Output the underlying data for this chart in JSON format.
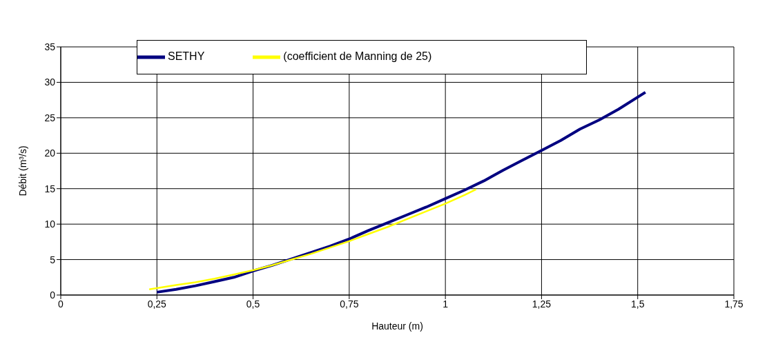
{
  "chart_data": {
    "type": "line",
    "xlabel": "Hauteur (m)",
    "ylabel": "Débit (m³/s)",
    "xlim": [
      0,
      1.75
    ],
    "xticks": [
      0,
      {
        "value": 0.25,
        "label": "0,25"
      },
      {
        "value": 0.5,
        "label": "0,5"
      },
      {
        "value": 0.75,
        "label": "0,75"
      },
      1,
      {
        "value": 1.25,
        "label": "1,25"
      },
      {
        "value": 1.5,
        "label": "1,5"
      },
      {
        "value": 1.75,
        "label": "1,75"
      }
    ],
    "ylim": [
      0,
      35
    ],
    "yticks": [
      0,
      5,
      10,
      15,
      20,
      25,
      30,
      35
    ],
    "grid": true,
    "legend": "top",
    "marker": "none",
    "line_style": "solid",
    "series": [
      {
        "name": "SETHY",
        "color": "#000080",
        "x": [
          0.25,
          0.3,
          0.35,
          0.4,
          0.45,
          0.5,
          0.55,
          0.6,
          0.65,
          0.7,
          0.75,
          0.8,
          0.85,
          0.9,
          0.95,
          1.0,
          1.05,
          1.1,
          1.15,
          1.2,
          1.25,
          1.3,
          1.35,
          1.4,
          1.45,
          1.52
        ],
        "values": [
          0.4,
          0.8,
          1.3,
          1.9,
          2.5,
          3.4,
          4.2,
          5.1,
          6.0,
          6.9,
          7.9,
          9.1,
          10.2,
          11.3,
          12.4,
          13.6,
          14.8,
          16.1,
          17.6,
          19.0,
          20.4,
          21.8,
          23.4,
          24.7,
          26.2,
          28.6
        ]
      },
      {
        "name": "(coefficient de Manning de 25)",
        "color": "#ffff00",
        "x": [
          0.23,
          0.3,
          0.35,
          0.4,
          0.45,
          0.5,
          0.55,
          0.6,
          0.65,
          0.7,
          0.75,
          0.8,
          0.85,
          0.9,
          0.95,
          1.0,
          1.05,
          1.08
        ],
        "values": [
          0.8,
          1.4,
          1.8,
          2.3,
          2.9,
          3.5,
          4.2,
          5.0,
          5.8,
          6.7,
          7.6,
          8.6,
          9.6,
          10.7,
          11.8,
          12.9,
          14.1,
          14.9
        ]
      }
    ]
  }
}
